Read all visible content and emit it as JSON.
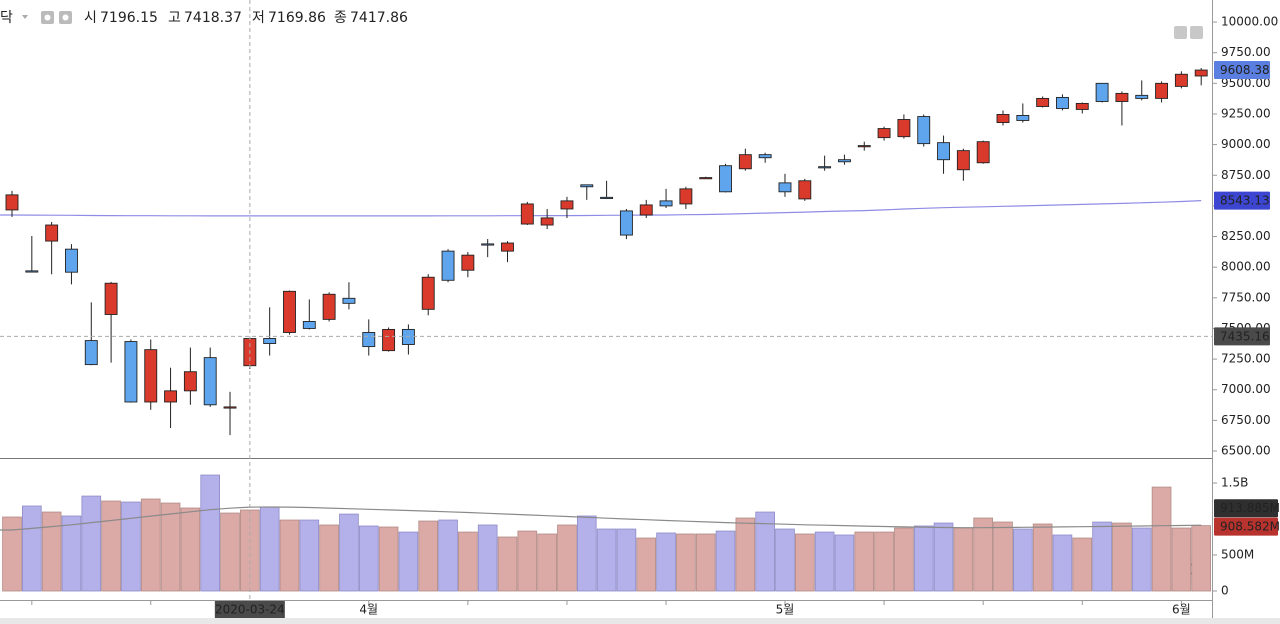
{
  "symbol": "닥",
  "ohlc_labels": [
    "시",
    "고",
    "저",
    "종"
  ],
  "chart_data": [
    {
      "type": "candlestick",
      "categories": [
        null,
        null,
        null,
        null,
        null,
        null,
        null,
        null,
        null,
        null,
        null,
        null,
        "2020-03-24",
        null,
        null,
        null,
        null,
        null,
        "4월",
        null,
        null,
        null,
        null,
        null,
        null,
        null,
        null,
        null,
        null,
        null,
        null,
        null,
        null,
        null,
        null,
        null,
        null,
        null,
        null,
        "5월",
        null,
        null,
        null,
        null,
        null,
        null,
        null,
        null,
        null,
        null,
        null,
        null,
        null,
        null,
        null,
        null,
        null,
        null,
        null,
        "6월",
        null
      ],
      "open": [
        8467,
        7970,
        8213,
        8147,
        7401,
        7614,
        7393,
        6900,
        6900,
        6991,
        7262,
        6852,
        7196.15,
        7418,
        7467,
        7557,
        7574,
        7746,
        7467,
        7319,
        7492,
        7656,
        8131,
        7975,
        8190,
        8131,
        8352,
        8344,
        8475,
        8672,
        8570,
        8459,
        8426,
        8541,
        8516,
        8729,
        8828,
        8803,
        8918,
        8688,
        8557,
        8820,
        8877,
        8990,
        9057,
        9065,
        9229,
        9016,
        8795,
        8852,
        9180,
        9238,
        9311,
        9385,
        9287,
        9500,
        9352,
        9402,
        9377,
        9475,
        9560
      ],
      "high": [
        8623,
        8254,
        8369,
        8188,
        7713,
        7880,
        7410,
        7410,
        7180,
        7344,
        7344,
        6983,
        7418.37,
        7672,
        7810,
        7737,
        7795,
        7877,
        7574,
        7508,
        7533,
        7943,
        8147,
        8123,
        8230,
        8213,
        8533,
        8475,
        8574,
        8672,
        8705,
        8475,
        8549,
        8639,
        8656,
        8738,
        8844,
        8967,
        8934,
        8762,
        8721,
        8910,
        8918,
        9024,
        9147,
        9246,
        9246,
        9074,
        8967,
        9033,
        9278,
        9336,
        9393,
        9410,
        9344,
        9500,
        9434,
        9524,
        9516,
        9598,
        9625
      ],
      "low": [
        8410,
        7960,
        7942,
        7860,
        7200,
        7221,
        6895,
        6836,
        6688,
        6877,
        6860,
        6630,
        7169.86,
        7279,
        7450,
        7492,
        7557,
        7656,
        7279,
        7311,
        7287,
        7607,
        7877,
        7918,
        8082,
        8041,
        8344,
        8311,
        8401,
        8549,
        8566,
        8229,
        8401,
        8483,
        8475,
        8723,
        8610,
        8787,
        8852,
        8574,
        8541,
        8787,
        8836,
        8951,
        9033,
        9049,
        8984,
        8762,
        8705,
        8844,
        9156,
        9180,
        9303,
        9279,
        9254,
        9344,
        9156,
        9361,
        9344,
        9459,
        9484
      ],
      "close": [
        8590,
        7960,
        8344,
        7959,
        7205,
        7869,
        6900,
        7327,
        6991,
        7147,
        6877,
        6860,
        7417.86,
        7377,
        7803,
        7500,
        7779,
        7705,
        7352,
        7492,
        7369,
        7918,
        7893,
        8098,
        8188,
        8197,
        8516,
        8402,
        8541,
        8656,
        8566,
        8262,
        8508,
        8500,
        8639,
        8731,
        8615,
        8918,
        8893,
        8615,
        8705,
        8819,
        8860,
        8992,
        9131,
        9205,
        9008,
        8877,
        8951,
        9024,
        9246,
        9197,
        9377,
        9295,
        9336,
        9352,
        9418,
        9377,
        9500,
        9574,
        9608.38
      ],
      "up_color": "#d93a2b",
      "down_color": "#5ea5ee",
      "ma": {
        "color": "#8f8ce6",
        "label_color": "#3c46d0",
        "values": [
          8426,
          8425,
          8424,
          8423,
          8422,
          8421,
          8420,
          8420,
          8419,
          8419,
          8418,
          8418,
          8418,
          8418,
          8418,
          8418,
          8418,
          8418,
          8418,
          8418,
          8418,
          8418,
          8419,
          8419,
          8419,
          8420,
          8420,
          8421,
          8421,
          8422,
          8423,
          8424,
          8425,
          8426,
          8428,
          8430,
          8433,
          8437,
          8441,
          8445,
          8449,
          8454,
          8458,
          8462,
          8467,
          8475,
          8480,
          8485,
          8489,
          8493,
          8497,
          8500,
          8504,
          8508,
          8512,
          8516,
          8520,
          8525,
          8530,
          8536,
          8543.13
        ]
      },
      "last_label_color": "#5a7fe0",
      "crosshair_price": 7435.16,
      "ylim": [
        6443,
        10180
      ],
      "yticks": [
        {
          "value": 6500,
          "label": "6500.00"
        },
        {
          "value": 6750,
          "label": "6750.00"
        },
        {
          "value": 7000,
          "label": "7000.00"
        },
        {
          "value": 7250,
          "label": "7250.00"
        },
        {
          "value": 7500,
          "label": "7500.00"
        },
        {
          "value": 7750,
          "label": "7750.00"
        },
        {
          "value": 8000,
          "label": "8000.00"
        },
        {
          "value": 8250,
          "label": "8250.00"
        },
        {
          "value": 8500,
          "label": "8500.00"
        },
        {
          "value": 8750,
          "label": "8750.00"
        },
        {
          "value": 9000,
          "label": "9000.00"
        },
        {
          "value": 9250,
          "label": "9250.00"
        },
        {
          "value": 9500,
          "label": "9500.00"
        },
        {
          "value": 9750,
          "label": "9750.00"
        },
        {
          "value": 10000,
          "label": "10000.00"
        }
      ]
    },
    {
      "type": "bar",
      "values": [
        1028000000,
        1181000000,
        1097000000,
        1042000000,
        1319000000,
        1250000000,
        1236000000,
        1278000000,
        1222000000,
        1153000000,
        1611000000,
        1083000000,
        1125000000,
        1167000000,
        986000000,
        986000000,
        917000000,
        1069000000,
        903000000,
        889000000,
        819000000,
        972000000,
        986000000,
        819000000,
        917000000,
        750000000,
        833000000,
        792000000,
        917000000,
        1042000000,
        861000000,
        861000000,
        736000000,
        806000000,
        792000000,
        792000000,
        833000000,
        1014000000,
        1097000000,
        861000000,
        792000000,
        819000000,
        778000000,
        819000000,
        819000000,
        875000000,
        903000000,
        944000000,
        875000000,
        1014000000,
        958000000,
        861000000,
        931000000,
        778000000,
        736000000,
        958000000,
        944000000,
        875000000,
        1444000000,
        875000000,
        908582000
      ],
      "value_labels": [
        null,
        null,
        null,
        null,
        null,
        null,
        null,
        null,
        null,
        null,
        null,
        null,
        null,
        null,
        null,
        null,
        null,
        null,
        null,
        null,
        null,
        null,
        null,
        null,
        null,
        null,
        null,
        null,
        null,
        null,
        null,
        null,
        null,
        null,
        null,
        null,
        null,
        null,
        null,
        null,
        null,
        null,
        null,
        null,
        null,
        null,
        null,
        null,
        null,
        null,
        null,
        null,
        null,
        null,
        null,
        null,
        null,
        null,
        null,
        null,
        "908.582M"
      ],
      "up_color": "#dcaaa6",
      "down_color": "#b3b0ea",
      "last_label_color": "#b8332e",
      "ma": {
        "color": "#8a8a8a",
        "label_color": "#2f2f2f",
        "values": [
          847000000,
          870000000,
          895000000,
          920000000,
          950000000,
          980000000,
          1010000000,
          1040000000,
          1070000000,
          1100000000,
          1130000000,
          1150000000,
          1165000000,
          1167000000,
          1166000000,
          1160000000,
          1152000000,
          1143000000,
          1135000000,
          1127000000,
          1118000000,
          1110000000,
          1100000000,
          1090000000,
          1080000000,
          1068000000,
          1057000000,
          1046000000,
          1035000000,
          1024000000,
          1012000000,
          1000000000,
          990000000,
          980000000,
          970000000,
          960000000,
          950000000,
          942000000,
          935000000,
          928000000,
          920000000,
          914000000,
          908000000,
          902000000,
          896000000,
          890000000,
          886000000,
          882000000,
          880000000,
          880000000,
          882000000,
          885000000,
          888000000,
          890000000,
          893000000,
          896000000,
          900000000,
          903000000,
          907000000,
          910000000,
          913885000
        ],
        "value_labels": [
          null,
          null,
          null,
          null,
          null,
          null,
          null,
          null,
          null,
          null,
          null,
          null,
          null,
          null,
          null,
          null,
          null,
          null,
          null,
          null,
          null,
          null,
          null,
          null,
          null,
          null,
          null,
          null,
          null,
          null,
          null,
          null,
          null,
          null,
          null,
          null,
          null,
          null,
          null,
          null,
          null,
          null,
          null,
          null,
          null,
          null,
          null,
          null,
          null,
          null,
          null,
          null,
          null,
          null,
          null,
          null,
          null,
          null,
          null,
          null,
          "913.885M"
        ]
      },
      "ylim": [
        -125000000,
        1820000000
      ],
      "yticks": [
        0,
        {
          "value": 500000000,
          "label": "500M"
        },
        {
          "value": 1500000000,
          "label": "1.5B"
        }
      ]
    }
  ]
}
